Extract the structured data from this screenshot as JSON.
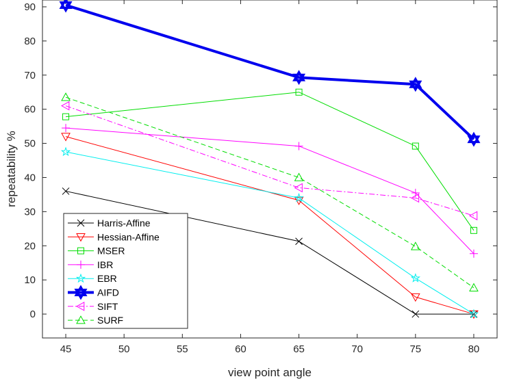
{
  "chart_data": {
    "type": "line",
    "title": "",
    "xlabel": "view point angle",
    "ylabel": "repeatability %",
    "xlim": [
      43,
      82
    ],
    "ylim": [
      -7,
      92
    ],
    "x_ticks": [
      "45",
      "50",
      "55",
      "60",
      "65",
      "70",
      "75",
      "80"
    ],
    "y_ticks": [
      "0",
      "10",
      "20",
      "30",
      "40",
      "50",
      "60",
      "70",
      "80",
      "90"
    ],
    "grid": false,
    "legend_position": "bottom-left",
    "x": [
      45,
      65,
      75,
      80
    ],
    "series": [
      {
        "name": "Harris-Affine",
        "values": [
          36,
          21.3,
          0,
          0
        ],
        "color": "#000000",
        "marker": "x",
        "line": "solid",
        "width": 1
      },
      {
        "name": "Hessian-Affine",
        "values": [
          52,
          33.3,
          5,
          0
        ],
        "color": "#ff0000",
        "marker": "triangle-down",
        "line": "solid",
        "width": 1
      },
      {
        "name": "MSER",
        "values": [
          57.8,
          65,
          49.2,
          24.5
        ],
        "color": "#00dd00",
        "marker": "square",
        "line": "solid",
        "width": 1
      },
      {
        "name": "IBR",
        "values": [
          54.5,
          49.2,
          35.5,
          17.7
        ],
        "color": "#ff00ff",
        "marker": "plus",
        "line": "solid",
        "width": 1
      },
      {
        "name": "EBR",
        "values": [
          47.5,
          34,
          10.5,
          0
        ],
        "color": "#00eeee",
        "marker": "star",
        "line": "solid",
        "width": 1
      },
      {
        "name": "AIFD",
        "values": [
          90.5,
          69.3,
          67.3,
          51.2
        ],
        "color": "#0000ee",
        "marker": "hexagram",
        "line": "solid",
        "width": 4
      },
      {
        "name": "SIFT",
        "values": [
          61,
          37,
          34,
          28.8
        ],
        "color": "#ff00ff",
        "marker": "triangle-left",
        "line": "dashdot",
        "width": 1
      },
      {
        "name": "SURF",
        "values": [
          63.5,
          40,
          19.8,
          7.7
        ],
        "color": "#00dd00",
        "marker": "triangle-up",
        "line": "dashed",
        "width": 1
      }
    ]
  }
}
